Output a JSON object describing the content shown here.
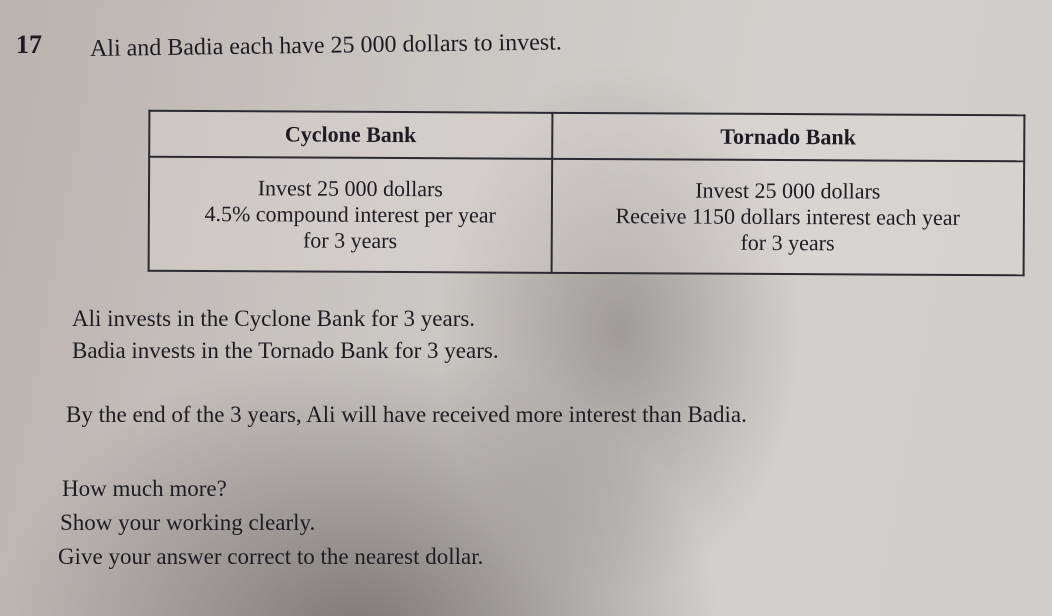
{
  "question_number": "17",
  "intro": "Ali and Badia each have 25 000 dollars to invest.",
  "table": {
    "headers": [
      "Cyclone Bank",
      "Tornado Bank"
    ],
    "cells": [
      [
        "Invest 25 000 dollars",
        "4.5% compound interest per year",
        "for 3 years"
      ],
      [
        "Invest 25 000 dollars",
        "Receive 1150 dollars interest each year",
        "for 3 years"
      ]
    ]
  },
  "statements": [
    "Ali invests in the Cyclone Bank for 3 years.",
    "Badia invests in the Tornado Bank for 3 years.",
    "By the end of the 3 years, Ali will have received more interest than Badia."
  ],
  "instructions": [
    "How much more?",
    "Show your working clearly.",
    "Give your answer correct to the nearest dollar."
  ]
}
